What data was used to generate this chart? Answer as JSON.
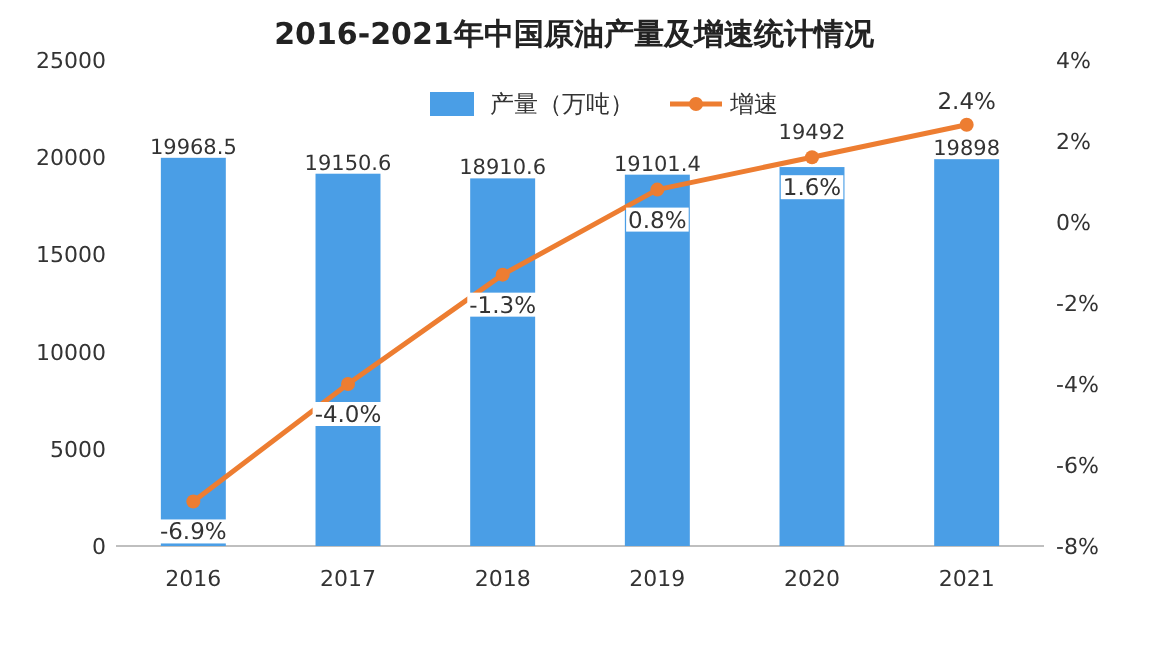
{
  "chart_data": {
    "type": "bar",
    "title": "2016-2021年中国原油产量及增速统计情况",
    "categories": [
      "2016",
      "2017",
      "2018",
      "2019",
      "2020",
      "2021"
    ],
    "series": [
      {
        "name": "产量（万吨）",
        "color": "#4a9ee6",
        "values": [
          19968.5,
          19150.6,
          18910.6,
          19101.4,
          19492,
          19898
        ],
        "value_labels": [
          "19968.5",
          "19150.6",
          "18910.6",
          "19101.4",
          "19492",
          "19898"
        ]
      },
      {
        "name": "增速",
        "type": "line",
        "axis": "y2",
        "color": "#ed7d31",
        "values": [
          -6.9,
          -4.0,
          -1.3,
          0.8,
          1.6,
          2.4
        ],
        "value_labels": [
          "-6.9%",
          "-4.0%",
          "-1.3%",
          "0.8%",
          "1.6%",
          "2.4%"
        ]
      }
    ],
    "ylim": [
      0,
      25000
    ],
    "yticks": [
      0,
      5000,
      10000,
      15000,
      20000,
      25000
    ],
    "y2lim": [
      -8,
      4
    ],
    "y2ticks": [
      {
        "value": -8,
        "label": "-8%"
      },
      {
        "value": -6,
        "label": "-6%"
      },
      {
        "value": -4,
        "label": "-4%"
      },
      {
        "value": -2,
        "label": "-2%"
      },
      {
        "value": 0,
        "label": "0%"
      },
      {
        "value": 2,
        "label": "2%"
      },
      {
        "value": 4,
        "label": "4%"
      }
    ],
    "legend": "top",
    "marker": "circle"
  }
}
